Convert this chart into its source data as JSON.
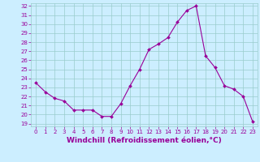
{
  "hours": [
    0,
    1,
    2,
    3,
    4,
    5,
    6,
    7,
    8,
    9,
    10,
    11,
    12,
    13,
    14,
    15,
    16,
    17,
    18,
    19,
    20,
    21,
    22,
    23
  ],
  "values": [
    23.5,
    22.5,
    21.8,
    21.5,
    20.5,
    20.5,
    20.5,
    19.8,
    19.8,
    21.2,
    23.2,
    25.0,
    27.2,
    27.8,
    28.5,
    30.2,
    31.5,
    32.0,
    26.5,
    25.2,
    23.2,
    22.8,
    22.0,
    19.2
  ],
  "line_color": "#990099",
  "marker": "D",
  "marker_size": 2.0,
  "bg_color": "#cceeff",
  "grid_color": "#99cccc",
  "xlabel": "Windchill (Refroidissement éolien,°C)",
  "ylim_min": 18.7,
  "ylim_max": 32.3,
  "yticks": [
    19,
    20,
    21,
    22,
    23,
    24,
    25,
    26,
    27,
    28,
    29,
    30,
    31,
    32
  ],
  "xtick_labels": [
    "0",
    "1",
    "2",
    "3",
    "4",
    "5",
    "6",
    "7",
    "8",
    "9",
    "10",
    "11",
    "12",
    "13",
    "14",
    "15",
    "16",
    "17",
    "18",
    "19",
    "20",
    "21",
    "22",
    "23"
  ],
  "tick_color": "#990099",
  "tick_fontsize": 5.0,
  "xlabel_fontsize": 6.5,
  "xlabel_color": "#990099"
}
